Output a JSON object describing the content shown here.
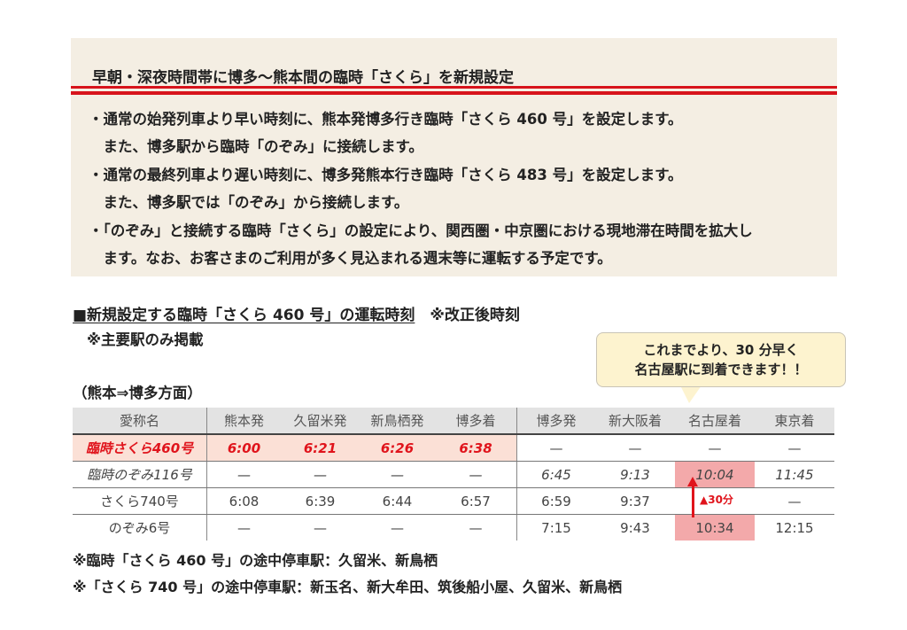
{
  "panel": {
    "title": "早朝・深夜時間帯に博多～熊本間の臨時「さくら」を新規設定",
    "bullets": [
      "・通常の始発列車より早い時刻に、熊本発博多行き臨時「さくら 460 号」を設定します。",
      "　また、博多駅から臨時「のぞみ」に接続します。",
      "・通常の最終列車より遅い時刻に、博多発熊本行き臨時「さくら 483 号」を設定します。",
      "　また、博多駅では「のぞみ」から接続します。",
      "・「のぞみ」と接続する臨時「さくら」の設定により、関西圏・中京圏における現地滞在時間を拡大し",
      "　ます。なお、お客さまのご利用が多く見込まれる週末等に運転する予定です。"
    ]
  },
  "section": {
    "heading": "■新規設定する臨時「さくら 460 号」の運転時刻",
    "heading_note": "※改正後時刻",
    "sub_note": "※主要駅のみ掲載",
    "direction": "（熊本⇒博多方面）"
  },
  "callout": {
    "line1": "これまでより、30 分早く",
    "line2": "名古屋駅に到着できます！！"
  },
  "table": {
    "headers": [
      "愛称名",
      "熊本発",
      "久留米発",
      "新鳥栖発",
      "博多着",
      "博多発",
      "新大阪着",
      "名古屋着",
      "東京着"
    ],
    "rows": [
      [
        "臨時さくら460号",
        "6:00",
        "6:21",
        "6:26",
        "6:38",
        "—",
        "—",
        "—",
        "—"
      ],
      [
        "臨時のぞみ116号",
        "—",
        "—",
        "—",
        "—",
        "6:45",
        "9:13",
        "10:04",
        "11:45"
      ],
      [
        "さくら740号",
        "6:08",
        "6:39",
        "6:44",
        "6:57",
        "6:59",
        "9:37",
        "",
        "—"
      ],
      [
        "のぞみ6号",
        "—",
        "—",
        "—",
        "—",
        "7:15",
        "9:43",
        "10:34",
        "12:15"
      ]
    ],
    "delta_label": "▲30分"
  },
  "footnotes": [
    "※臨時「さくら 460 号」の途中停車駅：久留米、新鳥栖",
    "※「さくら 740 号」の途中停車駅：新玉名、新大牟田、筑後船小屋、久留米、新鳥栖"
  ],
  "colors": {
    "accent_red": "#e0141c",
    "panel_bg": "#f4eee3",
    "highlight_pink": "#f3a9aa",
    "row_pink": "#fbe0d6",
    "callout_bg": "#fdf3cf"
  }
}
